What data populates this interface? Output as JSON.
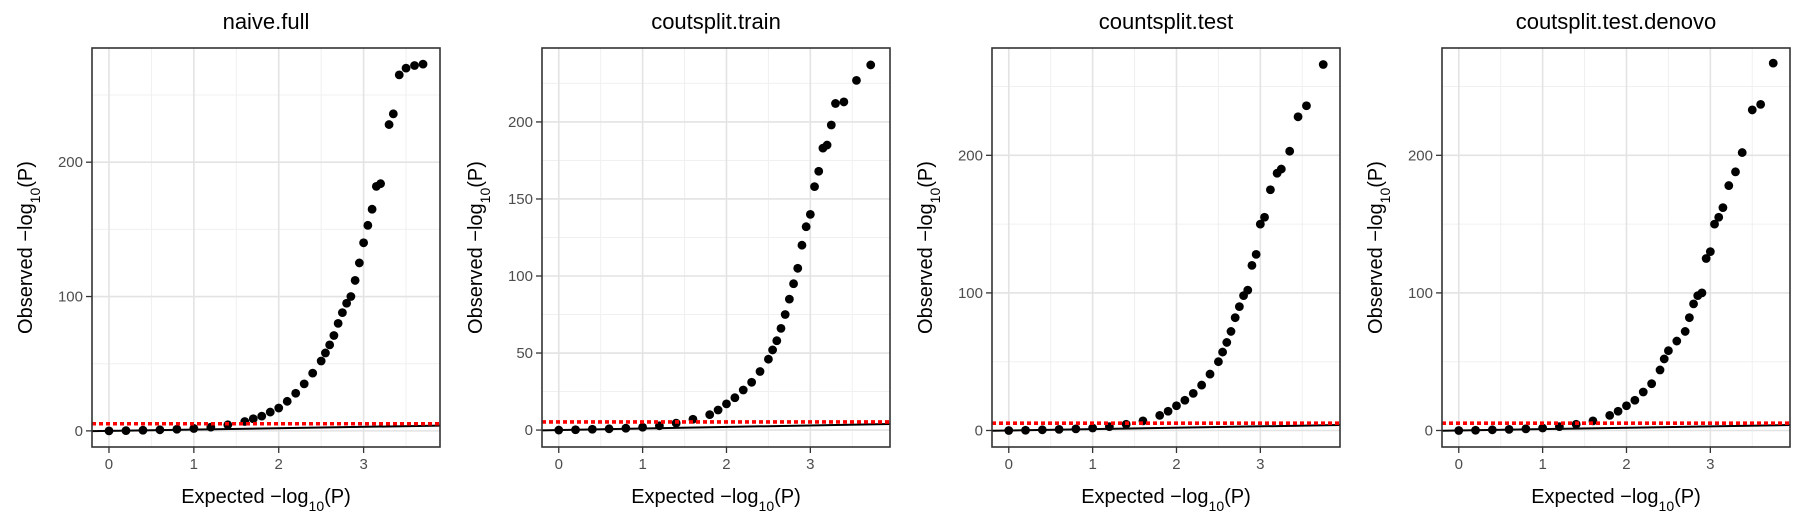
{
  "chart_data": [
    {
      "type": "scatter",
      "title": "naive.full",
      "xlabel": "Expected −log10(P)",
      "ylabel": "Observed −log10(P)",
      "xlim": [
        -0.2,
        3.9
      ],
      "ylim": [
        -12,
        285
      ],
      "xticks": [
        0,
        1,
        2,
        3
      ],
      "yticks": [
        0,
        100,
        200
      ],
      "grid": true,
      "threshold": 5.3,
      "points": [
        [
          0,
          0
        ],
        [
          0.2,
          0.2
        ],
        [
          0.4,
          0.5
        ],
        [
          0.6,
          0.8
        ],
        [
          0.8,
          1.2
        ],
        [
          1,
          1.8
        ],
        [
          1.2,
          2.8
        ],
        [
          1.4,
          4.5
        ],
        [
          1.6,
          7
        ],
        [
          1.7,
          9
        ],
        [
          1.8,
          11
        ],
        [
          1.9,
          14
        ],
        [
          2,
          17
        ],
        [
          2.1,
          22
        ],
        [
          2.2,
          28
        ],
        [
          2.3,
          35
        ],
        [
          2.4,
          43
        ],
        [
          2.5,
          52
        ],
        [
          2.55,
          58
        ],
        [
          2.6,
          64
        ],
        [
          2.65,
          71
        ],
        [
          2.7,
          80
        ],
        [
          2.75,
          88
        ],
        [
          2.8,
          95
        ],
        [
          2.85,
          100
        ],
        [
          2.9,
          112
        ],
        [
          2.95,
          125
        ],
        [
          3,
          140
        ],
        [
          3.05,
          153
        ],
        [
          3.1,
          165
        ],
        [
          3.15,
          182
        ],
        [
          3.2,
          184
        ],
        [
          3.3,
          228
        ],
        [
          3.35,
          236
        ],
        [
          3.42,
          265
        ],
        [
          3.5,
          270
        ],
        [
          3.6,
          272
        ],
        [
          3.7,
          273
        ]
      ]
    },
    {
      "type": "scatter",
      "title": "coutsplit.train",
      "xlabel": "Expected −log10(P)",
      "ylabel": "Observed −log10(P)",
      "xlim": [
        -0.2,
        3.95
      ],
      "ylim": [
        -11,
        248
      ],
      "xticks": [
        0,
        1,
        2,
        3
      ],
      "yticks": [
        0,
        50,
        100,
        150,
        200
      ],
      "grid": true,
      "threshold": 5.3,
      "points": [
        [
          0,
          0
        ],
        [
          0.2,
          0.2
        ],
        [
          0.4,
          0.5
        ],
        [
          0.6,
          0.8
        ],
        [
          0.8,
          1.2
        ],
        [
          1,
          1.8
        ],
        [
          1.2,
          2.8
        ],
        [
          1.4,
          4.5
        ],
        [
          1.6,
          7
        ],
        [
          1.8,
          10
        ],
        [
          1.9,
          13
        ],
        [
          2,
          17
        ],
        [
          2.1,
          21
        ],
        [
          2.2,
          26
        ],
        [
          2.3,
          31
        ],
        [
          2.4,
          38
        ],
        [
          2.5,
          46
        ],
        [
          2.55,
          52
        ],
        [
          2.6,
          58
        ],
        [
          2.65,
          66
        ],
        [
          2.7,
          75
        ],
        [
          2.75,
          85
        ],
        [
          2.8,
          95
        ],
        [
          2.85,
          105
        ],
        [
          2.9,
          120
        ],
        [
          2.95,
          132
        ],
        [
          3,
          140
        ],
        [
          3.05,
          158
        ],
        [
          3.1,
          168
        ],
        [
          3.15,
          183
        ],
        [
          3.2,
          185
        ],
        [
          3.25,
          198
        ],
        [
          3.3,
          212
        ],
        [
          3.4,
          213
        ],
        [
          3.55,
          227
        ],
        [
          3.72,
          237
        ]
      ]
    },
    {
      "type": "scatter",
      "title": "countsplit.test",
      "xlabel": "Expected −log10(P)",
      "ylabel": "Observed −log10(P)",
      "xlim": [
        -0.2,
        3.95
      ],
      "ylim": [
        -12,
        278
      ],
      "xticks": [
        0,
        1,
        2,
        3
      ],
      "yticks": [
        0,
        100,
        200
      ],
      "grid": true,
      "threshold": 5.3,
      "points": [
        [
          0,
          0
        ],
        [
          0.2,
          0.2
        ],
        [
          0.4,
          0.5
        ],
        [
          0.6,
          0.8
        ],
        [
          0.8,
          1.2
        ],
        [
          1,
          1.8
        ],
        [
          1.2,
          2.8
        ],
        [
          1.4,
          4.5
        ],
        [
          1.6,
          7
        ],
        [
          1.8,
          11
        ],
        [
          1.9,
          14
        ],
        [
          2,
          18
        ],
        [
          2.1,
          22
        ],
        [
          2.2,
          27
        ],
        [
          2.3,
          33
        ],
        [
          2.4,
          41
        ],
        [
          2.5,
          50
        ],
        [
          2.55,
          57
        ],
        [
          2.6,
          64
        ],
        [
          2.65,
          72
        ],
        [
          2.7,
          82
        ],
        [
          2.75,
          90
        ],
        [
          2.8,
          98
        ],
        [
          2.85,
          102
        ],
        [
          2.9,
          120
        ],
        [
          2.95,
          128
        ],
        [
          3,
          150
        ],
        [
          3.05,
          155
        ],
        [
          3.12,
          175
        ],
        [
          3.2,
          187
        ],
        [
          3.25,
          190
        ],
        [
          3.35,
          203
        ],
        [
          3.45,
          228
        ],
        [
          3.55,
          236
        ],
        [
          3.75,
          266
        ]
      ]
    },
    {
      "type": "scatter",
      "title": "coutsplit.test.denovo",
      "xlabel": "Expected −log10(P)",
      "ylabel": "Observed −log10(P)",
      "xlim": [
        -0.2,
        3.95
      ],
      "ylim": [
        -12,
        278
      ],
      "xticks": [
        0,
        1,
        2,
        3
      ],
      "yticks": [
        0,
        100,
        200
      ],
      "grid": true,
      "threshold": 5.3,
      "points": [
        [
          0,
          0
        ],
        [
          0.2,
          0.2
        ],
        [
          0.4,
          0.5
        ],
        [
          0.6,
          0.8
        ],
        [
          0.8,
          1.2
        ],
        [
          1,
          1.8
        ],
        [
          1.2,
          2.8
        ],
        [
          1.4,
          4.5
        ],
        [
          1.6,
          7
        ],
        [
          1.8,
          11
        ],
        [
          1.9,
          14
        ],
        [
          2,
          18
        ],
        [
          2.1,
          22
        ],
        [
          2.2,
          28
        ],
        [
          2.3,
          34
        ],
        [
          2.4,
          44
        ],
        [
          2.45,
          52
        ],
        [
          2.5,
          58
        ],
        [
          2.6,
          65
        ],
        [
          2.7,
          72
        ],
        [
          2.75,
          82
        ],
        [
          2.8,
          92
        ],
        [
          2.85,
          98
        ],
        [
          2.9,
          100
        ],
        [
          2.95,
          125
        ],
        [
          3,
          130
        ],
        [
          3.05,
          150
        ],
        [
          3.1,
          155
        ],
        [
          3.15,
          162
        ],
        [
          3.22,
          178
        ],
        [
          3.3,
          188
        ],
        [
          3.38,
          202
        ],
        [
          3.5,
          233
        ],
        [
          3.6,
          237
        ],
        [
          3.75,
          267
        ]
      ]
    }
  ]
}
